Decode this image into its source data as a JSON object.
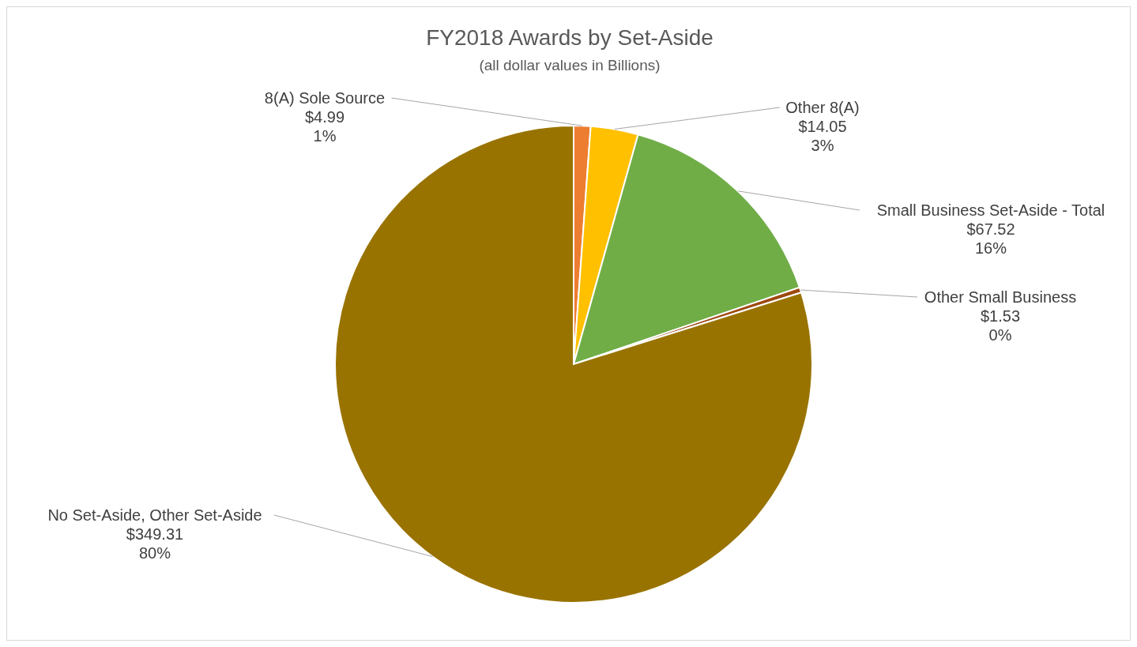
{
  "chart_data": {
    "type": "pie",
    "title": "FY2018 Awards by Set-Aside",
    "subtitle": "(all dollar values in Billions)",
    "categories": [
      "8(A) Sole Source",
      "Other 8(A)",
      "Small Business Set-Aside - Total",
      "Other Small Business",
      "No Set-Aside, Other Set-Aside"
    ],
    "values": [
      4.99,
      14.05,
      67.52,
      1.53,
      349.31
    ],
    "colors": [
      "#ed7d31",
      "#ffc000",
      "#70ad47",
      "#9e480e",
      "#997300"
    ],
    "value_labels": [
      "$4.99\n1%",
      "$14.05\n3%",
      "$67.52\n16%",
      "$1.53\n0%",
      "$349.31\n80%"
    ],
    "legend": false
  }
}
